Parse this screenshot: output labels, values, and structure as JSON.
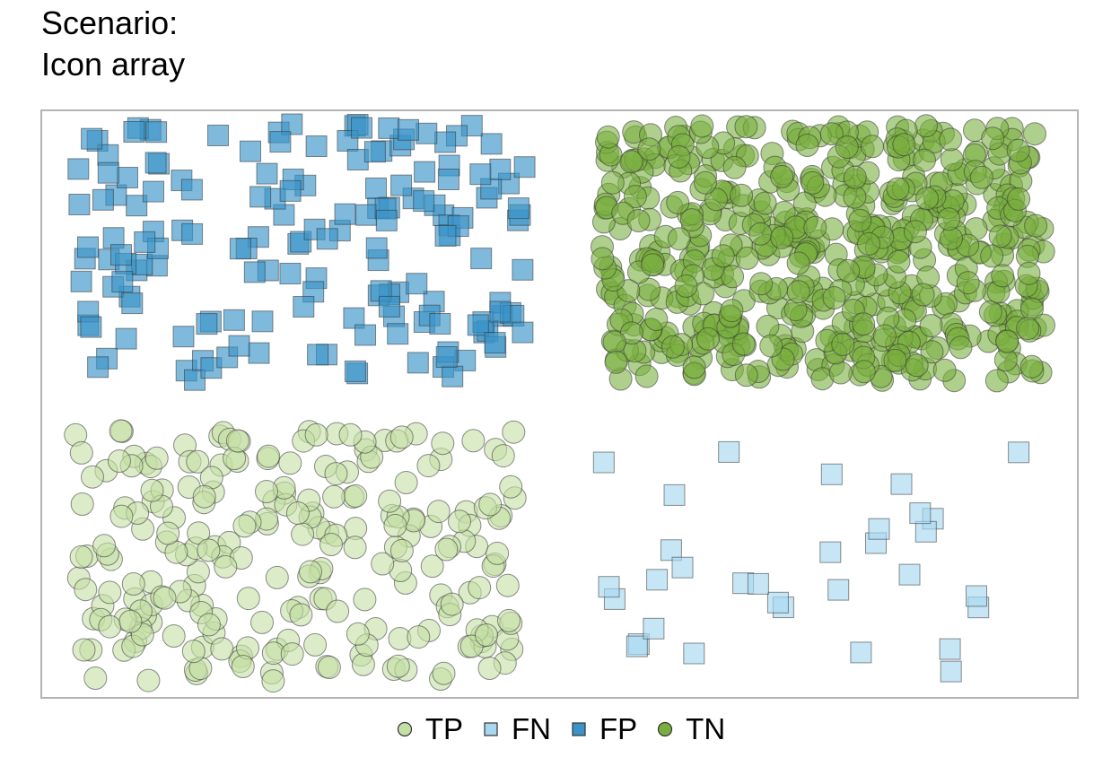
{
  "title_line1": "Scenario:",
  "title_line2": "Icon array",
  "colors": {
    "TP": "#c5e0a5",
    "FN": "#a8d8f0",
    "FP": "#3b93c8",
    "TN": "#7aaf3f",
    "panel_border": "#b3b3b3",
    "stroke": "#333333"
  },
  "chart_data": {
    "type": "scatter",
    "title": "Scenario:\nIcon array",
    "xlabel": "",
    "ylabel": "",
    "grid": false,
    "legend_position": "bottom",
    "legend": [
      {
        "label": "TP",
        "shape": "circle"
      },
      {
        "label": "FN",
        "shape": "square"
      },
      {
        "label": "FP",
        "shape": "square"
      },
      {
        "label": "TN",
        "shape": "circle"
      }
    ],
    "groups": [
      {
        "name": "FP",
        "shape": "square",
        "region": "top-left",
        "count": 168
      },
      {
        "name": "TN",
        "shape": "circle",
        "region": "top-right",
        "count": 560
      },
      {
        "name": "TP",
        "shape": "circle",
        "region": "bottom-left",
        "count": 240
      },
      {
        "name": "FN",
        "shape": "square",
        "region": "bottom-right",
        "count": 32
      }
    ]
  }
}
